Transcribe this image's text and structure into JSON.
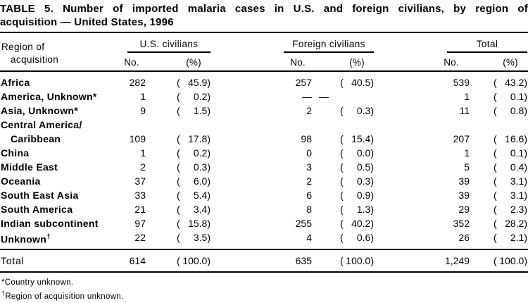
{
  "title": {
    "line1": "TABLE 5. Number of imported malaria cases in U.S. and foreign civilians, by region of",
    "line2": "acquisition — United States, 1996"
  },
  "header": {
    "region_line1": "Region of",
    "region_line2": "acquisition",
    "group_us": "U.S. civilians",
    "group_foreign": "Foreign civilians",
    "group_total": "Total",
    "no_label": "No.",
    "pct_label": "(%)"
  },
  "format": {
    "open_paren": "(",
    "close_paren": ")"
  },
  "rows": [
    {
      "label": "Africa",
      "us_no": "282",
      "us_pct": "45.9",
      "fc_no": "257",
      "fc_pct": "40.5",
      "t_no": "539",
      "t_pct": "43.2"
    },
    {
      "label": "America, Unknown*",
      "us_no": "1",
      "us_pct": "0.2",
      "fc_no": "—",
      "fc_pct": "—",
      "t_no": "1",
      "t_pct": "0.1"
    },
    {
      "label": "Asia, Unknown*",
      "us_no": "9",
      "us_pct": "1.5",
      "fc_no": "2",
      "fc_pct": "0.3",
      "t_no": "11",
      "t_pct": "0.8"
    },
    {
      "label": "Central America/",
      "label2": "Caribbean",
      "us_no": "109",
      "us_pct": "17.8",
      "fc_no": "98",
      "fc_pct": "15.4",
      "t_no": "207",
      "t_pct": "16.6"
    },
    {
      "label": "China",
      "us_no": "1",
      "us_pct": "0.2",
      "fc_no": "0",
      "fc_pct": "0.0",
      "t_no": "1",
      "t_pct": "0.1"
    },
    {
      "label": "Middle East",
      "us_no": "2",
      "us_pct": "0.3",
      "fc_no": "3",
      "fc_pct": "0.5",
      "t_no": "5",
      "t_pct": "0.4"
    },
    {
      "label": "Oceania",
      "us_no": "37",
      "us_pct": "6.0",
      "fc_no": "2",
      "fc_pct": "0.3",
      "t_no": "39",
      "t_pct": "3.1"
    },
    {
      "label": "South East Asia",
      "us_no": "33",
      "us_pct": "5.4",
      "fc_no": "6",
      "fc_pct": "0.9",
      "t_no": "39",
      "t_pct": "3.1"
    },
    {
      "label": "South America",
      "us_no": "21",
      "us_pct": "3.4",
      "fc_no": "8",
      "fc_pct": "1.3",
      "t_no": "29",
      "t_pct": "2.3"
    },
    {
      "label": "Indian subcontinent",
      "us_no": "97",
      "us_pct": "15.8",
      "fc_no": "255",
      "fc_pct": "40.2",
      "t_no": "352",
      "t_pct": "28.2"
    },
    {
      "label": "Unknown",
      "sup": "†",
      "us_no": "22",
      "us_pct": "3.5",
      "fc_no": "4",
      "fc_pct": "0.6",
      "t_no": "26",
      "t_pct": "2.1"
    }
  ],
  "total_row": {
    "label": "Total",
    "us_no": "614",
    "us_pct": "100.0",
    "fc_no": "635",
    "fc_pct": "100.0",
    "t_no": "1,249",
    "t_pct": "100.0"
  },
  "footnotes": [
    {
      "marker": "*",
      "text": "Country unknown."
    },
    {
      "marker": "†",
      "text": "Region of acquisition unknown."
    }
  ]
}
